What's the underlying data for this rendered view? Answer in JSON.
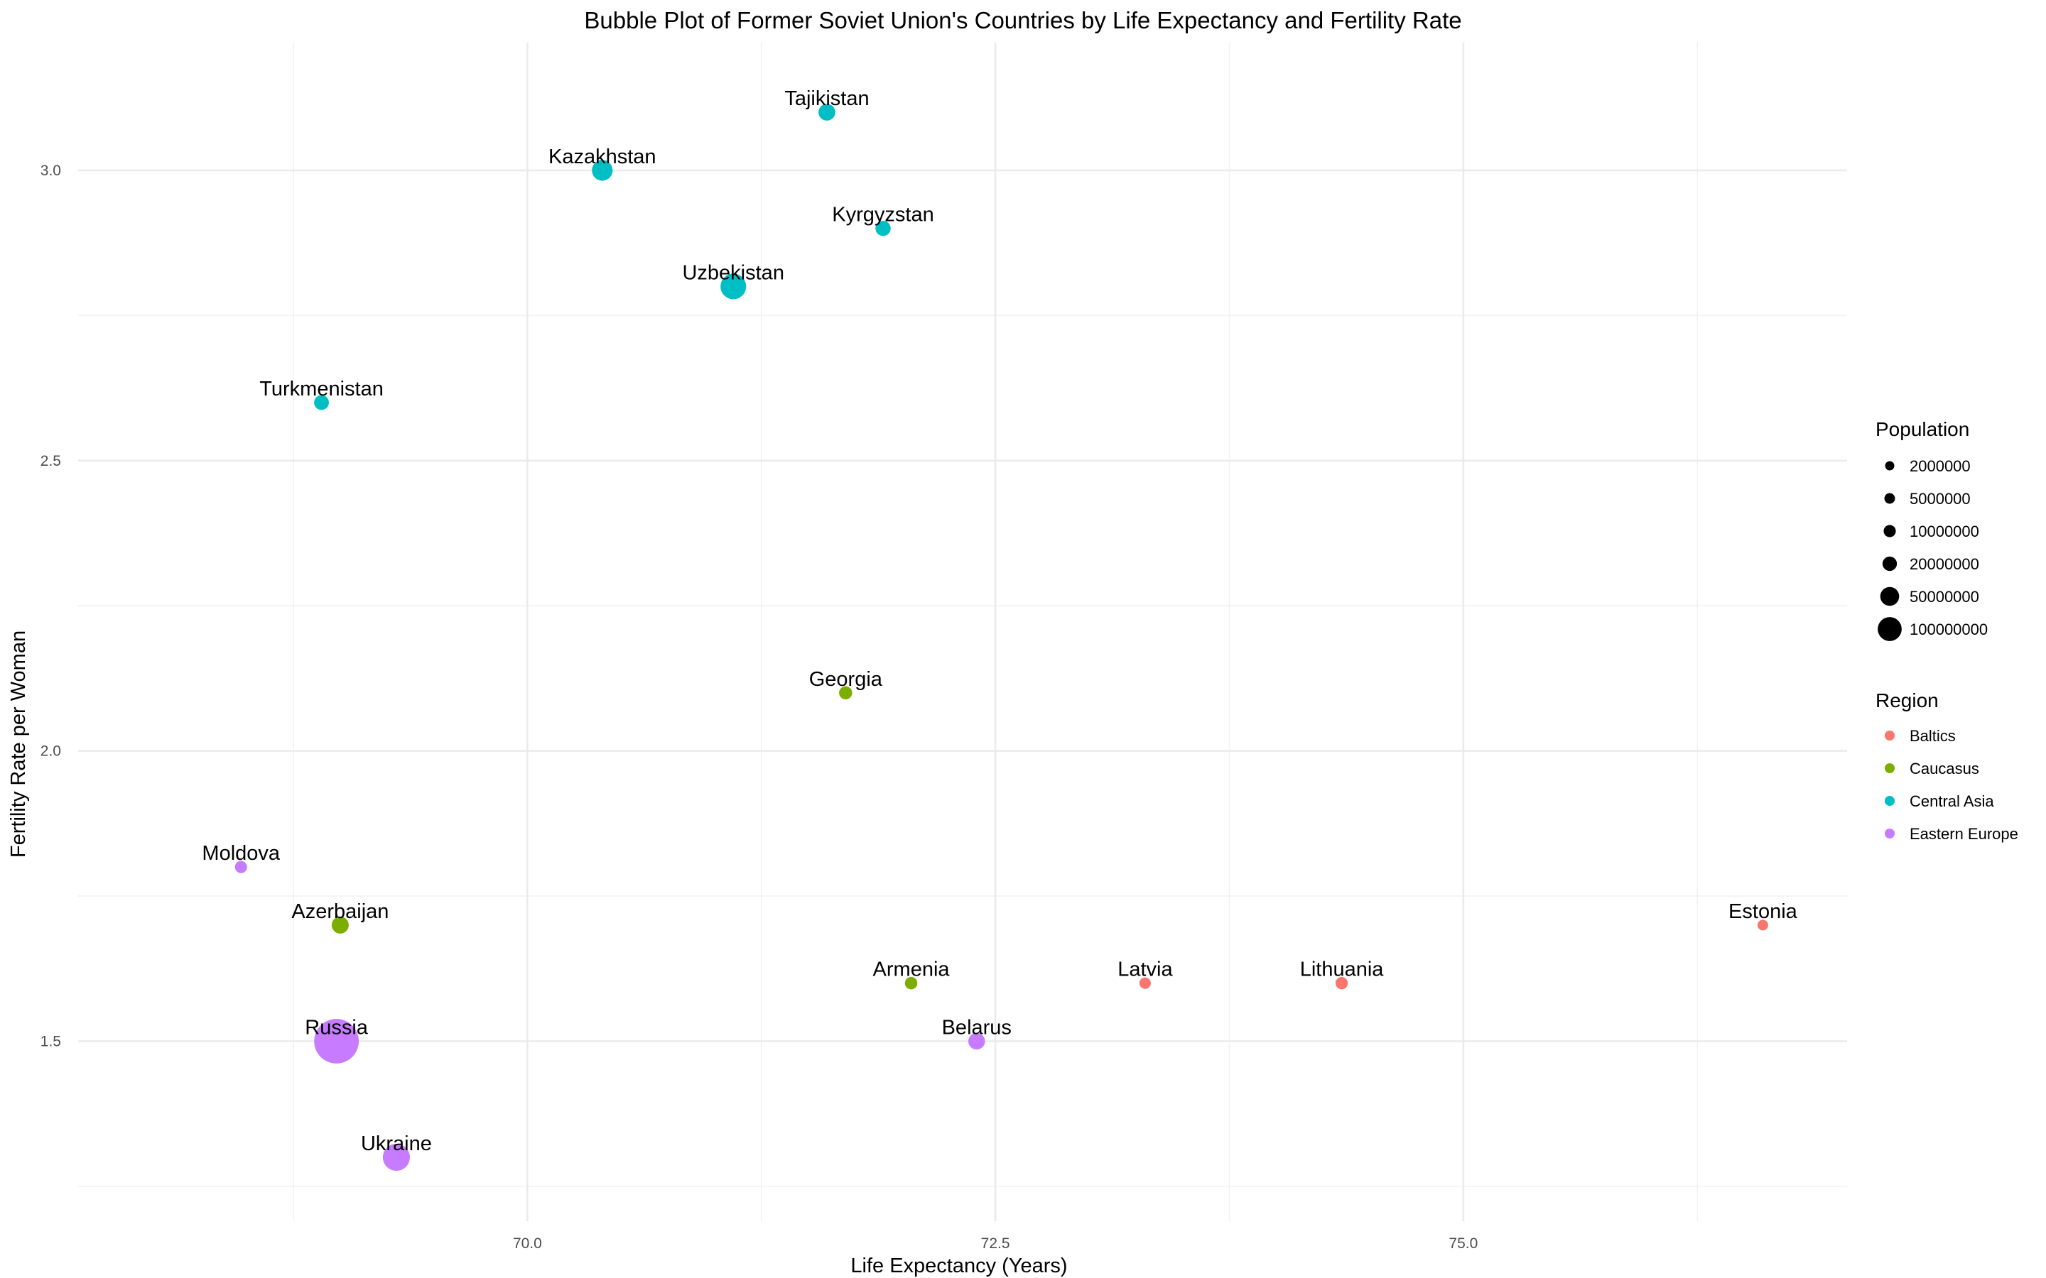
{
  "chart_data": {
    "type": "scatter",
    "title": "Bubble Plot of Former Soviet Union's Countries by Life Expectancy and Fertility Rate",
    "xlabel": "Life Expectancy (Years)",
    "ylabel": "Fertility Rate per Woman",
    "xlim": [
      67.6,
      77.05
    ],
    "ylim": [
      1.19,
      3.22
    ],
    "x_ticks": [
      70.0,
      72.5,
      75.0
    ],
    "y_ticks": [
      1.5,
      2.0,
      2.5,
      3.0
    ],
    "x_tick_labels": [
      "70.0",
      "72.5",
      "75.0"
    ],
    "y_tick_labels": [
      "1.5",
      "2.0",
      "2.5",
      "3.0"
    ],
    "grid": true,
    "legend_position": "right",
    "size_legend": {
      "title": "Population",
      "values": [
        2000000,
        5000000,
        10000000,
        20000000,
        50000000,
        100000000
      ],
      "labels": [
        "2000000",
        "5000000",
        "10000000",
        "20000000",
        "50000000",
        "100000000"
      ]
    },
    "color_legend": {
      "title": "Region",
      "entries": [
        {
          "label": "Baltics",
          "color": "#F8766D"
        },
        {
          "label": "Caucasus",
          "color": "#7CAE00"
        },
        {
          "label": "Central Asia",
          "color": "#00BFC4"
        },
        {
          "label": "Eastern Europe",
          "color": "#C77CFF"
        }
      ]
    },
    "points": [
      {
        "label": "Tajikistan",
        "x": 71.6,
        "y": 3.1,
        "population": 9500000,
        "region": "Central Asia"
      },
      {
        "label": "Kazakhstan",
        "x": 70.4,
        "y": 3.0,
        "population": 19000000,
        "region": "Central Asia"
      },
      {
        "label": "Kyrgyzstan",
        "x": 71.9,
        "y": 2.9,
        "population": 6700000,
        "region": "Central Asia"
      },
      {
        "label": "Uzbekistan",
        "x": 71.1,
        "y": 2.8,
        "population": 35000000,
        "region": "Central Asia"
      },
      {
        "label": "Turkmenistan",
        "x": 68.9,
        "y": 2.6,
        "population": 6100000,
        "region": "Central Asia"
      },
      {
        "label": "Georgia",
        "x": 71.7,
        "y": 2.1,
        "population": 3700000,
        "region": "Caucasus"
      },
      {
        "label": "Moldova",
        "x": 68.47,
        "y": 1.8,
        "population": 2600000,
        "region": "Eastern Europe"
      },
      {
        "label": "Azerbaijan",
        "x": 69.0,
        "y": 1.7,
        "population": 10100000,
        "region": "Caucasus"
      },
      {
        "label": "Estonia",
        "x": 76.6,
        "y": 1.7,
        "population": 1300000,
        "region": "Baltics"
      },
      {
        "label": "Armenia",
        "x": 72.05,
        "y": 1.6,
        "population": 2900000,
        "region": "Caucasus"
      },
      {
        "label": "Latvia",
        "x": 73.3,
        "y": 1.6,
        "population": 1900000,
        "region": "Baltics"
      },
      {
        "label": "Lithuania",
        "x": 74.35,
        "y": 1.6,
        "population": 2800000,
        "region": "Baltics"
      },
      {
        "label": "Russia",
        "x": 68.98,
        "y": 1.5,
        "population": 144000000,
        "region": "Eastern Europe"
      },
      {
        "label": "Belarus",
        "x": 72.4,
        "y": 1.5,
        "population": 9400000,
        "region": "Eastern Europe"
      },
      {
        "label": "Ukraine",
        "x": 69.3,
        "y": 1.3,
        "population": 41000000,
        "region": "Eastern Europe"
      }
    ]
  }
}
